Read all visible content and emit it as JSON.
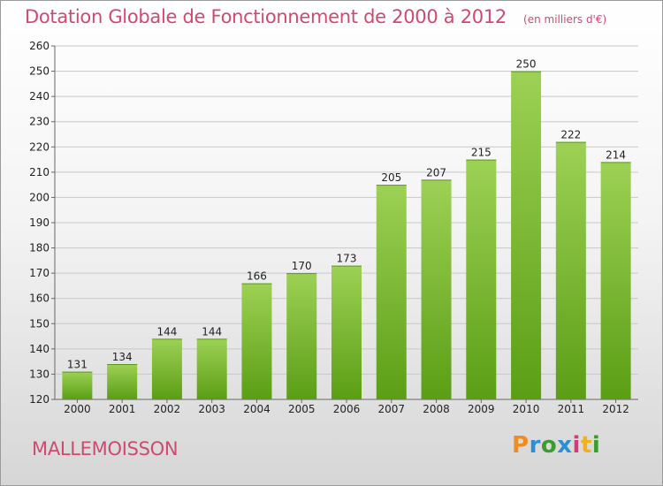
{
  "page": {
    "subtitle": "(en milliers d'€)",
    "commune": "MALLEMOISSON",
    "logo_text": "Proxiti"
  },
  "colors": {
    "title": "#d04a70",
    "bar_top": "#9dd155",
    "bar_bottom": "#5b9e15",
    "grid": "#c8c8c8",
    "logo_letters": [
      "#f28c1e",
      "#2a8fd6",
      "#3a9e2c",
      "#2a8fd6",
      "#d33a7a",
      "#f2b21e",
      "#3a9e2c"
    ]
  },
  "chart_data": {
    "type": "bar",
    "title": "Dotation Globale de Fonctionnement de 2000 à 2012",
    "categories": [
      "2000",
      "2001",
      "2002",
      "2003",
      "2004",
      "2005",
      "2006",
      "2007",
      "2008",
      "2009",
      "2010",
      "2011",
      "2012"
    ],
    "values": [
      131,
      134,
      144,
      144,
      166,
      170,
      173,
      205,
      207,
      215,
      250,
      222,
      214
    ],
    "xlabel": "",
    "ylabel": "",
    "ylim": [
      120,
      260
    ],
    "yticks": [
      120,
      130,
      140,
      150,
      160,
      170,
      180,
      190,
      200,
      210,
      220,
      230,
      240,
      250,
      260
    ],
    "grid": true,
    "data_labels": true
  }
}
